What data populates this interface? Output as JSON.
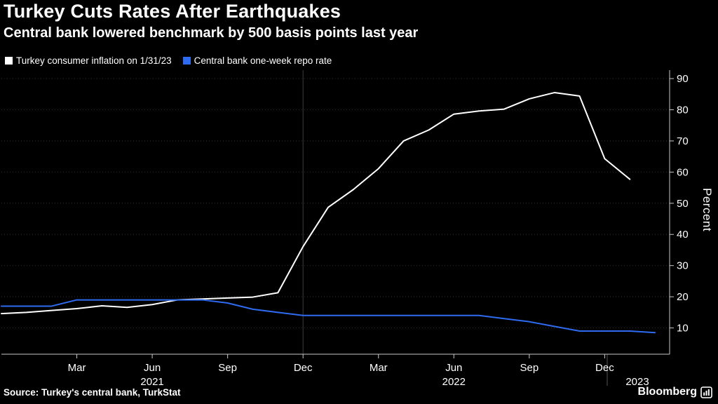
{
  "header": {
    "title": "Turkey Cuts Rates After Earthquakes",
    "subtitle": "Central bank lowered benchmark by 500 basis points last year"
  },
  "chart_data": {
    "type": "line",
    "x_unit": "month",
    "x_start": "Dec 2020",
    "x_end": "Feb 2023",
    "background_color": "#000000",
    "grid_color": "#2f2f2f",
    "axis_color": "#c8c8c8",
    "separator_color": "#3c3c3c",
    "ylabel": "Percent",
    "ylim": [
      0,
      93
    ],
    "yticks": [
      10,
      20,
      30,
      40,
      50,
      60,
      70,
      80,
      90
    ],
    "xticks": [
      {
        "label": "Mar",
        "m": 3
      },
      {
        "label": "Jun",
        "m": 6
      },
      {
        "label": "Sep",
        "m": 9
      },
      {
        "label": "Dec",
        "m": 12
      },
      {
        "label": "Mar",
        "m": 15
      },
      {
        "label": "Jun",
        "m": 18
      },
      {
        "label": "Sep",
        "m": 21
      },
      {
        "label": "Dec",
        "m": 24
      }
    ],
    "year_labels": [
      {
        "label": "2021",
        "m": 6
      },
      {
        "label": "2022",
        "m": 18
      },
      {
        "label": "2023",
        "m": 25.3
      }
    ],
    "year_separator_m": 12,
    "footer_separator_m": 24.1,
    "series": [
      {
        "name": "Turkey consumer inflation on 1/31/23",
        "color": "#ffffff",
        "values": [
          14.6,
          15.0,
          15.6,
          16.2,
          17.1,
          16.6,
          17.5,
          19.0,
          19.3,
          19.6,
          19.9,
          21.3,
          36.1,
          48.7,
          54.4,
          61.1,
          70.0,
          73.5,
          78.6,
          79.6,
          80.2,
          83.5,
          85.5,
          84.4,
          64.3,
          57.7
        ]
      },
      {
        "name": "Central bank one-week repo rate",
        "color": "#2e6bf0",
        "values": [
          17.0,
          17.0,
          17.0,
          19.0,
          19.0,
          19.0,
          19.0,
          19.0,
          19.0,
          18.0,
          16.0,
          15.0,
          14.0,
          14.0,
          14.0,
          14.0,
          14.0,
          14.0,
          14.0,
          14.0,
          13.0,
          12.0,
          10.5,
          9.0,
          9.0,
          9.0,
          8.5
        ]
      }
    ]
  },
  "footer": {
    "source": "Source: Turkey's central bank, TurkStat",
    "brand": "Bloomberg"
  }
}
